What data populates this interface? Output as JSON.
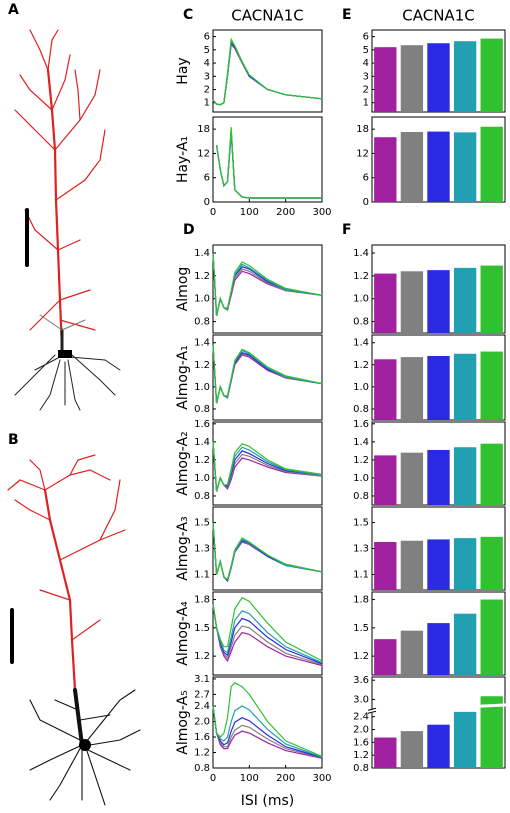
{
  "morphology": [
    {
      "panel": "A"
    },
    {
      "panel": "B"
    }
  ],
  "chart_data": [
    {
      "type": "line",
      "panel": "C",
      "title": "CACNA1C",
      "y_label": "Hay",
      "x": [
        0,
        10,
        20,
        30,
        40,
        50,
        60,
        80,
        100,
        150,
        200,
        300
      ],
      "xlim": [
        0,
        300
      ],
      "ylim": [
        0.3,
        6.5
      ],
      "yticks": [
        1,
        2,
        3,
        4,
        5,
        6
      ],
      "series": [
        {
          "color": "#a020a0",
          "values": [
            1.2,
            0.9,
            0.85,
            1.0,
            3.0,
            5.4,
            5.1,
            4.0,
            3.0,
            2.0,
            1.6,
            1.3
          ]
        },
        {
          "color": "#808080",
          "values": [
            1.2,
            0.9,
            0.85,
            1.0,
            3.0,
            5.5,
            5.2,
            4.0,
            3.0,
            2.0,
            1.6,
            1.3
          ]
        },
        {
          "color": "#2a2ae0",
          "values": [
            1.2,
            0.9,
            0.85,
            1.0,
            3.1,
            5.6,
            5.2,
            4.1,
            3.0,
            2.0,
            1.6,
            1.3
          ]
        },
        {
          "color": "#20a0b0",
          "values": [
            1.2,
            0.9,
            0.85,
            1.0,
            3.1,
            5.7,
            5.3,
            4.1,
            3.1,
            2.0,
            1.6,
            1.3
          ]
        },
        {
          "color": "#30c030",
          "values": [
            1.2,
            0.9,
            0.85,
            1.0,
            3.2,
            5.8,
            5.3,
            4.1,
            3.1,
            2.0,
            1.6,
            1.3
          ]
        }
      ]
    },
    {
      "type": "line",
      "y_label": "Hay-A₁",
      "x": [
        0,
        10,
        20,
        30,
        40,
        50,
        60,
        80,
        100,
        150,
        200,
        300
      ],
      "xlim": [
        0,
        300
      ],
      "xticks": [
        0,
        100,
        200,
        300
      ],
      "ylim": [
        0,
        21
      ],
      "yticks": [
        0,
        6,
        12,
        18
      ],
      "series": [
        {
          "color": "#a020a0",
          "values": [
            null,
            14,
            8,
            4,
            5,
            17,
            3,
            1.2,
            1.0,
            1.0,
            1.0,
            1.0
          ]
        },
        {
          "color": "#808080",
          "values": [
            null,
            14,
            8,
            4,
            5,
            17.5,
            3,
            1.2,
            1.0,
            1.0,
            1.0,
            1.0
          ]
        },
        {
          "color": "#2a2ae0",
          "values": [
            null,
            14,
            8,
            4,
            5,
            17.7,
            3,
            1.2,
            1.0,
            1.0,
            1.0,
            1.0
          ]
        },
        {
          "color": "#20a0b0",
          "values": [
            null,
            14,
            8,
            4,
            5,
            17.5,
            3,
            1.2,
            1.0,
            1.0,
            1.0,
            1.0
          ]
        },
        {
          "color": "#30c030",
          "values": [
            null,
            14,
            8,
            4,
            5,
            18.5,
            3,
            1.2,
            1.0,
            1.0,
            1.0,
            1.0
          ]
        }
      ]
    },
    {
      "type": "line",
      "panel": "D",
      "y_label": "Almog",
      "x": [
        0,
        10,
        20,
        30,
        40,
        50,
        60,
        80,
        100,
        150,
        200,
        300
      ],
      "xlim": [
        0,
        300
      ],
      "ylim": [
        0.7,
        1.47
      ],
      "yticks": [
        0.8,
        {
          "value": 1,
          "label": "1.0"
        },
        1.2,
        1.4
      ],
      "series": [
        {
          "color": "#a020a0",
          "values": [
            1.4,
            0.85,
            1.0,
            0.92,
            0.9,
            1.03,
            1.16,
            1.24,
            1.22,
            1.13,
            1.07,
            1.03
          ]
        },
        {
          "color": "#808080",
          "values": [
            1.4,
            0.85,
            1.0,
            0.92,
            0.9,
            1.04,
            1.18,
            1.26,
            1.24,
            1.14,
            1.07,
            1.03
          ]
        },
        {
          "color": "#2a2ae0",
          "values": [
            1.4,
            0.85,
            1.0,
            0.92,
            0.91,
            1.05,
            1.2,
            1.28,
            1.26,
            1.15,
            1.08,
            1.03
          ]
        },
        {
          "color": "#20a0b0",
          "values": [
            1.4,
            0.85,
            1.0,
            0.92,
            0.91,
            1.06,
            1.21,
            1.3,
            1.27,
            1.16,
            1.08,
            1.03
          ]
        },
        {
          "color": "#30c030",
          "values": [
            1.4,
            0.85,
            1.0,
            0.92,
            0.92,
            1.07,
            1.23,
            1.32,
            1.29,
            1.17,
            1.09,
            1.03
          ]
        }
      ]
    },
    {
      "type": "line",
      "y_label": "Almog-A₁",
      "x": [
        0,
        10,
        20,
        30,
        40,
        50,
        60,
        80,
        100,
        150,
        200,
        300
      ],
      "xlim": [
        0,
        300
      ],
      "ylim": [
        0.7,
        1.47
      ],
      "yticks": [
        0.8,
        {
          "value": 1,
          "label": "1.0"
        },
        1.2,
        1.4
      ],
      "series": [
        {
          "color": "#a020a0",
          "values": [
            1.38,
            0.85,
            1.0,
            0.92,
            0.9,
            1.05,
            1.2,
            1.29,
            1.27,
            1.15,
            1.08,
            1.03
          ]
        },
        {
          "color": "#808080",
          "values": [
            1.38,
            0.85,
            1.0,
            0.92,
            0.9,
            1.06,
            1.21,
            1.3,
            1.28,
            1.16,
            1.08,
            1.03
          ]
        },
        {
          "color": "#2a2ae0",
          "values": [
            1.38,
            0.85,
            1.0,
            0.92,
            0.91,
            1.07,
            1.22,
            1.31,
            1.29,
            1.16,
            1.09,
            1.03
          ]
        },
        {
          "color": "#20a0b0",
          "values": [
            1.38,
            0.85,
            1.0,
            0.92,
            0.91,
            1.07,
            1.23,
            1.33,
            1.3,
            1.17,
            1.09,
            1.03
          ]
        },
        {
          "color": "#30c030",
          "values": [
            1.38,
            0.85,
            1.0,
            0.92,
            0.92,
            1.08,
            1.24,
            1.34,
            1.31,
            1.18,
            1.1,
            1.03
          ]
        }
      ]
    },
    {
      "type": "line",
      "y_label": "Almog-A₂",
      "x": [
        0,
        10,
        20,
        30,
        40,
        50,
        60,
        80,
        100,
        150,
        200,
        300
      ],
      "xlim": [
        0,
        300
      ],
      "ylim": [
        0.7,
        1.62
      ],
      "yticks": [
        0.8,
        {
          "value": 1,
          "label": "1.0"
        },
        1.2,
        1.4,
        1.6
      ],
      "series": [
        {
          "color": "#a020a0",
          "values": [
            1.4,
            0.85,
            1.0,
            0.92,
            0.88,
            0.98,
            1.12,
            1.22,
            1.2,
            1.12,
            1.06,
            1.02
          ]
        },
        {
          "color": "#808080",
          "values": [
            1.4,
            0.85,
            1.0,
            0.92,
            0.9,
            1.01,
            1.16,
            1.26,
            1.24,
            1.14,
            1.07,
            1.02
          ]
        },
        {
          "color": "#2a2ae0",
          "values": [
            1.4,
            0.85,
            1.0,
            0.92,
            0.91,
            1.04,
            1.2,
            1.3,
            1.27,
            1.16,
            1.08,
            1.03
          ]
        },
        {
          "color": "#20a0b0",
          "values": [
            1.4,
            0.85,
            1.0,
            0.92,
            0.92,
            1.07,
            1.24,
            1.34,
            1.31,
            1.18,
            1.09,
            1.03
          ]
        },
        {
          "color": "#30c030",
          "values": [
            1.4,
            0.85,
            1.0,
            0.92,
            0.93,
            1.1,
            1.28,
            1.38,
            1.35,
            1.2,
            1.1,
            1.04
          ]
        }
      ]
    },
    {
      "type": "line",
      "y_label": "Almog-A₃",
      "x": [
        0,
        10,
        20,
        30,
        40,
        50,
        60,
        80,
        100,
        150,
        200,
        300
      ],
      "xlim": [
        0,
        300
      ],
      "ylim": [
        0.98,
        1.62
      ],
      "yticks": [
        1.1,
        1.3,
        1.5
      ],
      "series": [
        {
          "color": "#a020a0",
          "values": [
            1.5,
            1.1,
            1.2,
            1.08,
            1.05,
            1.15,
            1.27,
            1.35,
            1.33,
            1.24,
            1.17,
            1.12
          ]
        },
        {
          "color": "#808080",
          "values": [
            1.5,
            1.1,
            1.2,
            1.08,
            1.05,
            1.15,
            1.27,
            1.355,
            1.335,
            1.24,
            1.17,
            1.12
          ]
        },
        {
          "color": "#2a2ae0",
          "values": [
            1.5,
            1.1,
            1.2,
            1.08,
            1.05,
            1.16,
            1.28,
            1.36,
            1.34,
            1.24,
            1.17,
            1.12
          ]
        },
        {
          "color": "#20a0b0",
          "values": [
            1.5,
            1.1,
            1.2,
            1.08,
            1.06,
            1.16,
            1.28,
            1.37,
            1.345,
            1.25,
            1.17,
            1.12
          ]
        },
        {
          "color": "#30c030",
          "values": [
            1.5,
            1.1,
            1.2,
            1.08,
            1.06,
            1.17,
            1.29,
            1.38,
            1.35,
            1.25,
            1.18,
            1.12
          ]
        }
      ]
    },
    {
      "type": "line",
      "y_label": "Almog-A₄",
      "x": [
        0,
        10,
        20,
        30,
        40,
        50,
        60,
        80,
        100,
        150,
        200,
        300
      ],
      "xlim": [
        0,
        300
      ],
      "ylim": [
        1.0,
        1.88
      ],
      "yticks": [
        1.2,
        1.5,
        1.8
      ],
      "series": [
        {
          "color": "#a020a0",
          "values": [
            1.75,
            1.5,
            1.3,
            1.2,
            1.15,
            1.25,
            1.35,
            1.45,
            1.43,
            1.3,
            1.2,
            1.1
          ]
        },
        {
          "color": "#808080",
          "values": [
            1.75,
            1.5,
            1.32,
            1.22,
            1.18,
            1.3,
            1.42,
            1.52,
            1.5,
            1.35,
            1.23,
            1.11
          ]
        },
        {
          "color": "#2a2ae0",
          "values": [
            1.75,
            1.5,
            1.34,
            1.24,
            1.21,
            1.35,
            1.5,
            1.6,
            1.57,
            1.4,
            1.27,
            1.12
          ]
        },
        {
          "color": "#20a0b0",
          "values": [
            1.75,
            1.5,
            1.36,
            1.26,
            1.24,
            1.4,
            1.58,
            1.68,
            1.65,
            1.45,
            1.3,
            1.13
          ]
        },
        {
          "color": "#30c030",
          "values": [
            1.75,
            1.5,
            1.38,
            1.3,
            1.3,
            1.5,
            1.7,
            1.82,
            1.78,
            1.55,
            1.35,
            1.15
          ]
        }
      ]
    },
    {
      "type": "line",
      "y_label": "Almog-A₅",
      "x_label": "ISI (ms)",
      "x": [
        0,
        10,
        20,
        30,
        40,
        50,
        60,
        80,
        100,
        150,
        200,
        300
      ],
      "xlim": [
        0,
        300
      ],
      "xticks": [
        0,
        100,
        200,
        300
      ],
      "ylim": [
        0.8,
        3.15
      ],
      "yticks": [
        0.8,
        1.2,
        1.6,
        {
          "value": 2,
          "label": "2.0"
        },
        2.4,
        2.7,
        3.1
      ],
      "series": [
        {
          "color": "#a020a0",
          "values": [
            2.4,
            1.7,
            1.4,
            1.3,
            1.3,
            1.5,
            1.65,
            1.75,
            1.7,
            1.45,
            1.25,
            1.05
          ]
        },
        {
          "color": "#808080",
          "values": [
            2.4,
            1.7,
            1.45,
            1.35,
            1.35,
            1.6,
            1.78,
            1.9,
            1.85,
            1.55,
            1.3,
            1.06
          ]
        },
        {
          "color": "#2a2ae0",
          "values": [
            2.4,
            1.7,
            1.5,
            1.4,
            1.45,
            1.75,
            1.98,
            2.1,
            2.02,
            1.65,
            1.35,
            1.07
          ]
        },
        {
          "color": "#20a0b0",
          "values": [
            2.4,
            1.7,
            1.55,
            1.5,
            1.6,
            2.0,
            2.28,
            2.4,
            2.3,
            1.8,
            1.42,
            1.08
          ]
        },
        {
          "color": "#30c030",
          "values": [
            2.4,
            1.7,
            1.6,
            1.7,
            2.1,
            2.9,
            3.0,
            2.9,
            2.7,
            2.0,
            1.5,
            1.1
          ]
        }
      ]
    },
    {
      "type": "bar",
      "panel": "E",
      "title": "CACNA1C",
      "ylim": [
        0.3,
        6.5
      ],
      "yticks": [
        1,
        2,
        3,
        4,
        5,
        6
      ],
      "values": [
        5.2,
        5.35,
        5.5,
        5.65,
        5.85
      ],
      "colors": [
        "#a020a0",
        "#808080",
        "#2a2ae0",
        "#20a0b0",
        "#30c030"
      ]
    },
    {
      "type": "bar",
      "ylim": [
        0,
        21
      ],
      "yticks": [
        0,
        6,
        12,
        18
      ],
      "values": [
        16,
        17.3,
        17.4,
        17.2,
        18.6
      ],
      "colors": [
        "#a020a0",
        "#808080",
        "#2a2ae0",
        "#20a0b0",
        "#30c030"
      ]
    },
    {
      "type": "bar",
      "panel": "F",
      "ylim": [
        0.7,
        1.47
      ],
      "yticks": [
        0.8,
        {
          "value": 1,
          "label": "1.0"
        },
        1.2,
        1.4
      ],
      "values": [
        1.22,
        1.24,
        1.25,
        1.27,
        1.29
      ],
      "colors": [
        "#a020a0",
        "#808080",
        "#2a2ae0",
        "#20a0b0",
        "#30c030"
      ]
    },
    {
      "type": "bar",
      "ylim": [
        0.7,
        1.47
      ],
      "yticks": [
        0.8,
        {
          "value": 1,
          "label": "1.0"
        },
        1.2,
        1.4
      ],
      "values": [
        1.25,
        1.27,
        1.28,
        1.3,
        1.32
      ],
      "colors": [
        "#a020a0",
        "#808080",
        "#2a2ae0",
        "#20a0b0",
        "#30c030"
      ]
    },
    {
      "type": "bar",
      "ylim": [
        0.7,
        1.62
      ],
      "yticks": [
        0.8,
        {
          "value": 1,
          "label": "1.0"
        },
        1.2,
        1.4,
        1.6
      ],
      "values": [
        1.25,
        1.28,
        1.31,
        1.34,
        1.38
      ],
      "colors": [
        "#a020a0",
        "#808080",
        "#2a2ae0",
        "#20a0b0",
        "#30c030"
      ]
    },
    {
      "type": "bar",
      "ylim": [
        0.98,
        1.62
      ],
      "yticks": [
        1.1,
        1.3,
        1.5
      ],
      "values": [
        1.35,
        1.36,
        1.37,
        1.38,
        1.39
      ],
      "colors": [
        "#a020a0",
        "#808080",
        "#2a2ae0",
        "#20a0b0",
        "#30c030"
      ]
    },
    {
      "type": "bar",
      "ylim": [
        1.0,
        1.88
      ],
      "yticks": [
        1.2,
        1.5,
        1.8
      ],
      "values": [
        1.38,
        1.47,
        1.55,
        1.65,
        1.8
      ],
      "colors": [
        "#a020a0",
        "#808080",
        "#2a2ae0",
        "#20a0b0",
        "#30c030"
      ]
    },
    {
      "type": "bar",
      "ylim": [
        0.8,
        3.7
      ],
      "ybreak": [
        2.6,
        2.85
      ],
      "yticks": [
        0.8,
        1.2,
        1.6,
        {
          "value": 2,
          "label": "2.0"
        },
        2.4,
        {
          "value": 3,
          "label": "3.0"
        },
        3.6
      ],
      "values": [
        1.75,
        1.95,
        2.15,
        2.55,
        3.1
      ],
      "colors": [
        "#a020a0",
        "#808080",
        "#2a2ae0",
        "#20a0b0",
        "#30c030"
      ]
    }
  ]
}
